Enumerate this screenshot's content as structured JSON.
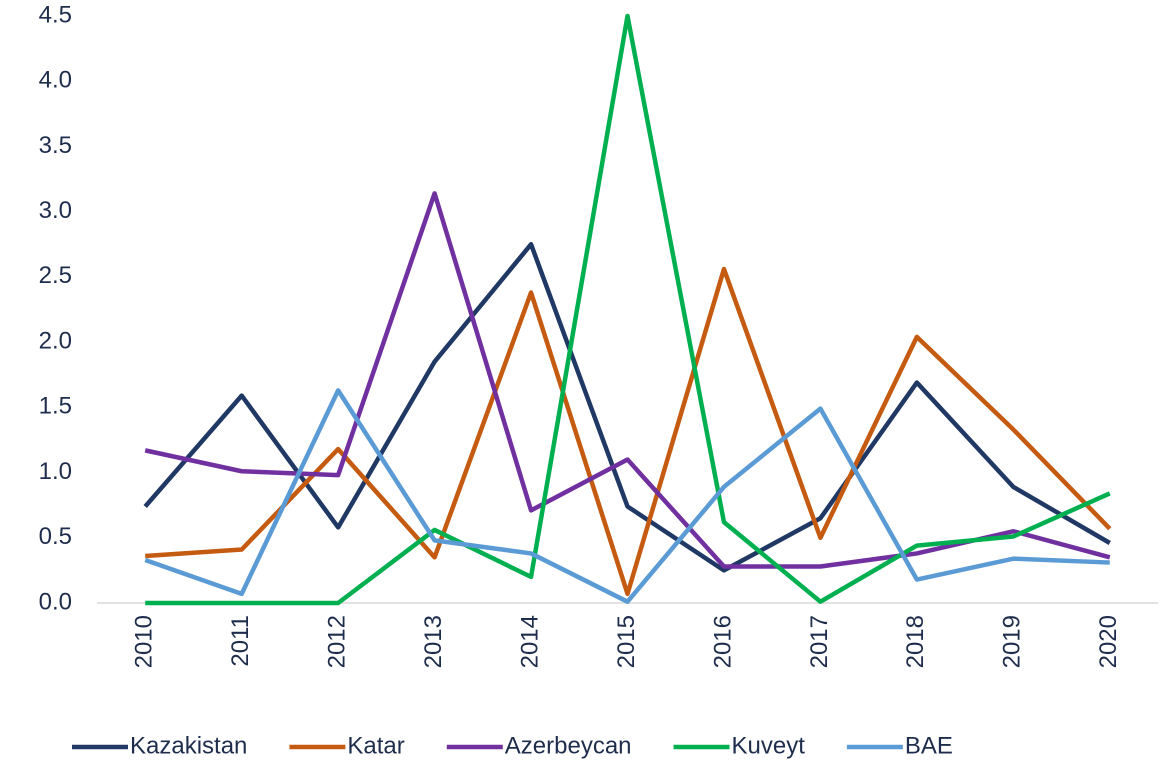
{
  "chart_data": {
    "type": "line",
    "categories": [
      "2010",
      "2011",
      "2012",
      "2013",
      "2014",
      "2015",
      "2016",
      "2017",
      "2018",
      "2019",
      "2020"
    ],
    "series": [
      {
        "name": "Kazakistan",
        "color": "#203864",
        "values": [
          0.74,
          1.59,
          0.58,
          1.85,
          2.75,
          0.74,
          0.25,
          0.65,
          1.69,
          0.89,
          0.46
        ]
      },
      {
        "name": "Katar",
        "color": "#c55a11",
        "values": [
          0.36,
          0.41,
          1.18,
          0.35,
          2.38,
          0.07,
          2.56,
          0.5,
          2.04,
          1.33,
          0.57
        ]
      },
      {
        "name": "Azerbeycan",
        "color": "#7030a0",
        "values": [
          1.17,
          1.01,
          0.98,
          3.14,
          0.71,
          1.1,
          0.28,
          0.28,
          0.38,
          0.55,
          0.35
        ]
      },
      {
        "name": "Kuveyt",
        "color": "#00b050",
        "values": [
          0,
          0,
          0,
          0.56,
          0.2,
          4.5,
          0.62,
          0.01,
          0.44,
          0.51,
          0.84
        ]
      },
      {
        "name": "BAE",
        "color": "#5b9bd5",
        "values": [
          0.33,
          0.07,
          1.63,
          0.48,
          0.38,
          0.01,
          0.89,
          1.49,
          0.18,
          0.34,
          0.31
        ]
      }
    ],
    "ylim": [
      0,
      4.5
    ],
    "yticks": [
      {
        "value": 0,
        "label": "0.0"
      },
      0.5,
      {
        "value": 1,
        "label": "1.0"
      },
      1.5,
      {
        "value": 2,
        "label": "2.0"
      },
      2.5,
      {
        "value": 3,
        "label": "3.0"
      },
      3.5,
      {
        "value": 4,
        "label": "4.0"
      },
      4.5
    ],
    "grid": false,
    "legend": "bottom"
  }
}
